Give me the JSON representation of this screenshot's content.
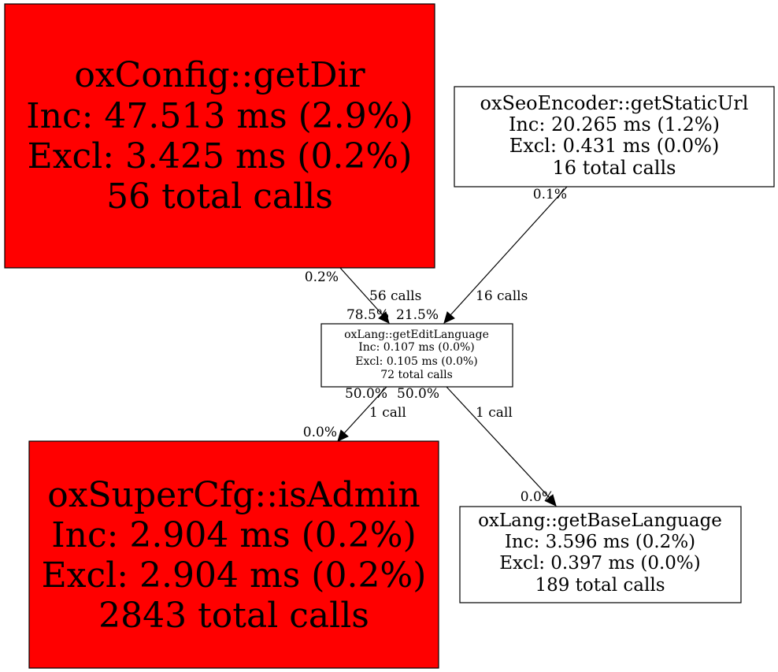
{
  "colors": {
    "hot": "#ff0000",
    "normal": "#ffffff",
    "line": "#000000"
  },
  "nodes": {
    "getDir": {
      "name": "oxConfig::getDir",
      "inc": "Inc: 47.513 ms (2.9%)",
      "excl": "Excl: 3.425 ms (0.2%)",
      "calls": "56 total calls"
    },
    "getStaticUrl": {
      "name": "oxSeoEncoder::getStaticUrl",
      "inc": "Inc: 20.265 ms (1.2%)",
      "excl": "Excl: 0.431 ms (0.0%)",
      "calls": "16 total calls"
    },
    "getEditLanguage": {
      "name": "oxLang::getEditLanguage",
      "inc": "Inc: 0.107 ms (0.0%)",
      "excl": "Excl: 0.105 ms (0.0%)",
      "calls": "72 total calls"
    },
    "isAdmin": {
      "name": "oxSuperCfg::isAdmin",
      "inc": "Inc: 2.904 ms (0.2%)",
      "excl": "Excl: 2.904 ms (0.2%)",
      "calls": "2843 total calls"
    },
    "getBaseLanguage": {
      "name": "oxLang::getBaseLanguage",
      "inc": "Inc: 3.596 ms (0.2%)",
      "excl": "Excl: 0.397 ms (0.0%)",
      "calls": "189 total calls"
    }
  },
  "edges": {
    "getDir_to_getEditLanguage": {
      "from_pct": "0.2%",
      "calls": "56 calls",
      "to_pct": "78.5%"
    },
    "getStaticUrl_to_getEditLanguage": {
      "from_pct": "0.1%",
      "calls": "16 calls",
      "to_pct": "21.5%"
    },
    "getEditLanguage_to_isAdmin": {
      "from_pct": "50.0%",
      "calls": "1 call",
      "to_pct": "0.0%"
    },
    "getEditLanguage_to_getBaseLanguage": {
      "from_pct": "50.0%",
      "calls": "1 call",
      "to_pct": "0.0%"
    }
  }
}
